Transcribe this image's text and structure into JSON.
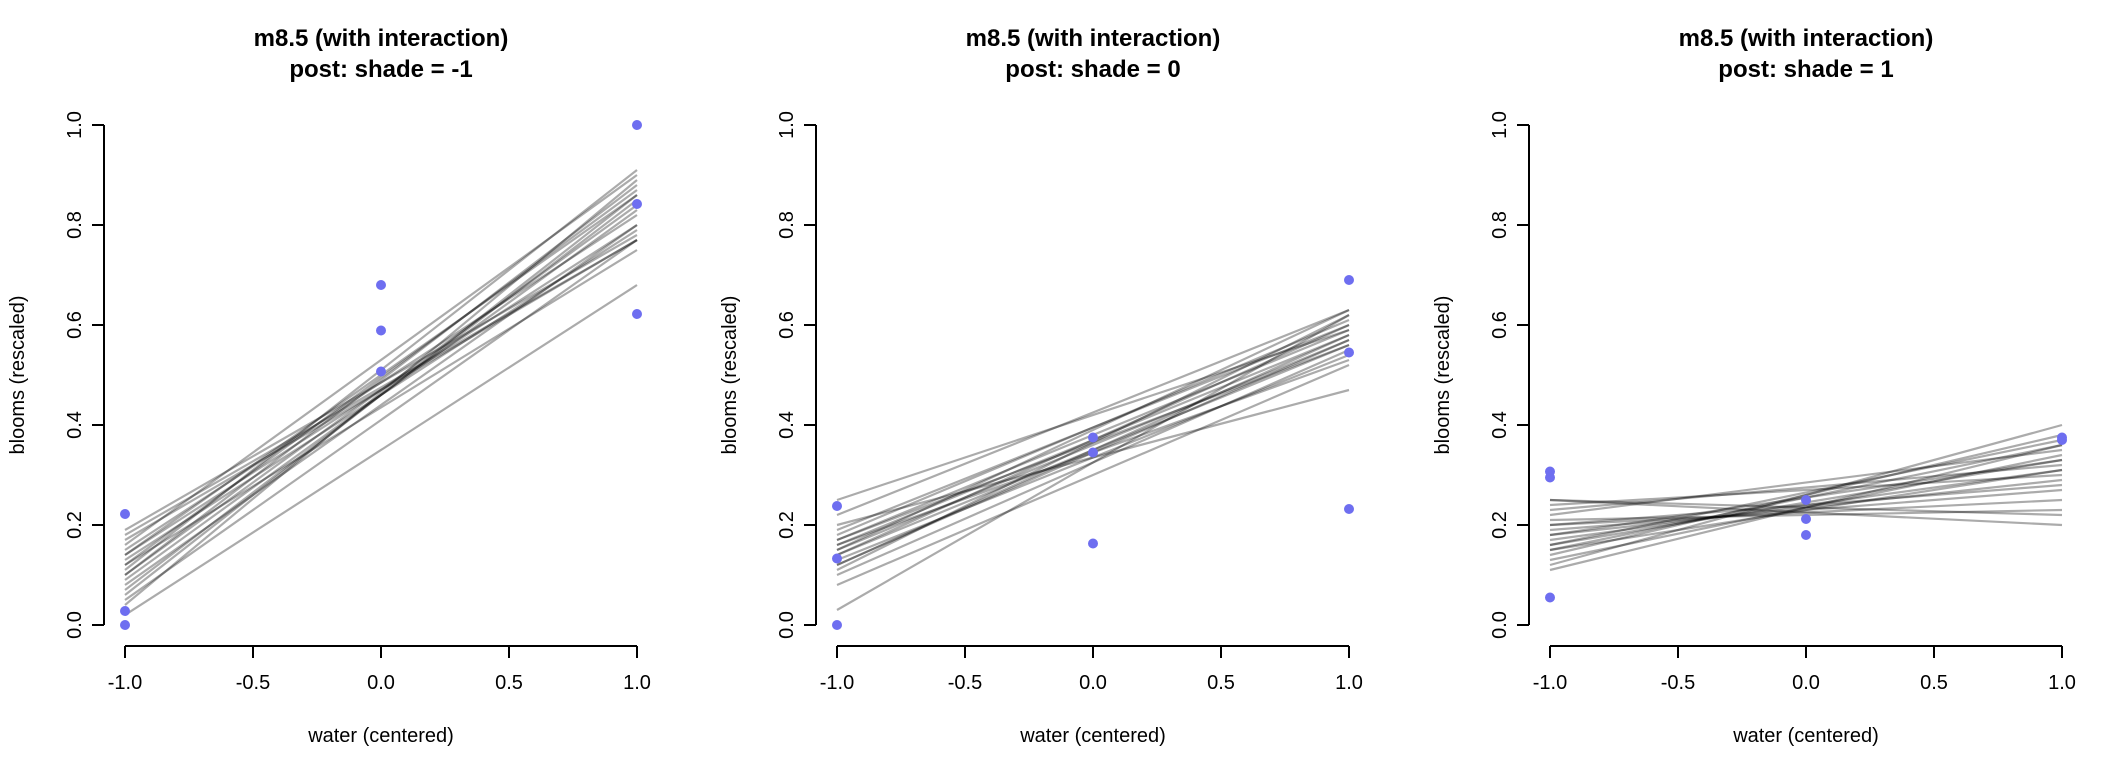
{
  "colors": {
    "point": "#6e6ef0",
    "line": "rgba(0,0,0,0.33)"
  },
  "chart_data": [
    {
      "type": "line",
      "title_line1": "m8.5 (with interaction)",
      "title_line2": "post: shade =  -1",
      "xlabel": "water (centered)",
      "ylabel": "blooms (rescaled)",
      "xlim": [
        -1,
        1
      ],
      "ylim": [
        0,
        1
      ],
      "xticks": [
        "-1.0",
        "-0.5",
        "0.0",
        "0.5",
        "1.0"
      ],
      "yticks": [
        "0.0",
        "0.2",
        "0.4",
        "0.6",
        "0.8",
        "1.0"
      ],
      "points": [
        [
          -1,
          0.0
        ],
        [
          -1,
          0.028
        ],
        [
          -1,
          0.222
        ],
        [
          0,
          0.507
        ],
        [
          0,
          0.589
        ],
        [
          0,
          0.68
        ],
        [
          1,
          0.622
        ],
        [
          1,
          0.842
        ],
        [
          1,
          1.0
        ]
      ],
      "lines": [
        [
          0.02,
          0.68
        ],
        [
          0.05,
          0.77
        ],
        [
          0.08,
          0.8
        ],
        [
          0.1,
          0.88
        ],
        [
          0.12,
          0.87
        ],
        [
          0.14,
          0.86
        ],
        [
          0.16,
          0.9
        ],
        [
          0.18,
          0.77
        ],
        [
          0.07,
          0.85
        ],
        [
          0.09,
          0.83
        ],
        [
          0.11,
          0.91
        ],
        [
          0.13,
          0.79
        ],
        [
          0.15,
          0.82
        ],
        [
          0.17,
          0.77
        ],
        [
          0.06,
          0.86
        ],
        [
          0.19,
          0.78
        ],
        [
          0.1,
          0.84
        ],
        [
          0.12,
          0.75
        ],
        [
          0.04,
          0.89
        ],
        [
          0.14,
          0.8
        ]
      ]
    },
    {
      "type": "line",
      "title_line1": "m8.5 (with interaction)",
      "title_line2": "post: shade =  0",
      "xlabel": "water (centered)",
      "ylabel": "blooms (rescaled)",
      "xlim": [
        -1,
        1
      ],
      "ylim": [
        0,
        1
      ],
      "xticks": [
        "-1.0",
        "-0.5",
        "0.0",
        "0.5",
        "1.0"
      ],
      "yticks": [
        "0.0",
        "0.2",
        "0.4",
        "0.6",
        "0.8",
        "1.0"
      ],
      "points": [
        [
          -1,
          0.0
        ],
        [
          -1,
          0.133
        ],
        [
          -1,
          0.238
        ],
        [
          0,
          0.163
        ],
        [
          0,
          0.345
        ],
        [
          0,
          0.375
        ],
        [
          1,
          0.232
        ],
        [
          1,
          0.545
        ],
        [
          1,
          0.69
        ]
      ],
      "lines": [
        [
          0.03,
          0.62
        ],
        [
          0.08,
          0.52
        ],
        [
          0.1,
          0.55
        ],
        [
          0.12,
          0.58
        ],
        [
          0.14,
          0.6
        ],
        [
          0.15,
          0.57
        ],
        [
          0.16,
          0.58
        ],
        [
          0.17,
          0.56
        ],
        [
          0.18,
          0.61
        ],
        [
          0.2,
          0.47
        ],
        [
          0.22,
          0.63
        ],
        [
          0.25,
          0.59
        ],
        [
          0.13,
          0.54
        ],
        [
          0.11,
          0.62
        ],
        [
          0.16,
          0.53
        ],
        [
          0.19,
          0.6
        ],
        [
          0.15,
          0.63
        ],
        [
          0.14,
          0.56
        ],
        [
          0.17,
          0.59
        ],
        [
          0.12,
          0.57
        ]
      ]
    },
    {
      "type": "line",
      "title_line1": "m8.5 (with interaction)",
      "title_line2": "post: shade =  1",
      "xlabel": "water (centered)",
      "ylabel": "blooms (rescaled)",
      "xlim": [
        -1,
        1
      ],
      "ylim": [
        0,
        1
      ],
      "xticks": [
        "-1.0",
        "-0.5",
        "0.0",
        "0.5",
        "1.0"
      ],
      "yticks": [
        "0.0",
        "0.2",
        "0.4",
        "0.6",
        "0.8",
        "1.0"
      ],
      "points": [
        [
          -1,
          0.055
        ],
        [
          -1,
          0.295
        ],
        [
          -1,
          0.307
        ],
        [
          0,
          0.18
        ],
        [
          0,
          0.212
        ],
        [
          0,
          0.25
        ],
        [
          1,
          0.37
        ],
        [
          1,
          0.375
        ]
      ],
      "lines": [
        [
          0.25,
          0.2
        ],
        [
          0.12,
          0.4
        ],
        [
          0.14,
          0.38
        ],
        [
          0.15,
          0.36
        ],
        [
          0.16,
          0.33
        ],
        [
          0.17,
          0.31
        ],
        [
          0.18,
          0.29
        ],
        [
          0.19,
          0.27
        ],
        [
          0.2,
          0.25
        ],
        [
          0.21,
          0.23
        ],
        [
          0.22,
          0.35
        ],
        [
          0.23,
          0.32
        ],
        [
          0.24,
          0.3
        ],
        [
          0.25,
          0.22
        ],
        [
          0.13,
          0.34
        ],
        [
          0.16,
          0.37
        ],
        [
          0.18,
          0.33
        ],
        [
          0.2,
          0.28
        ],
        [
          0.11,
          0.36
        ],
        [
          0.15,
          0.31
        ]
      ]
    }
  ]
}
